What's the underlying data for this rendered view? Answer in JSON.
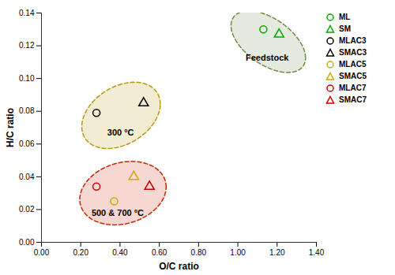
{
  "chart_data": {
    "type": "scatter",
    "xlabel": "O/C ratio",
    "ylabel": "H/C ratio",
    "xlim": [
      0.0,
      1.4
    ],
    "ylim": [
      0.0,
      0.14
    ],
    "xticks": [
      {
        "value": 0.0,
        "label": "0.00"
      },
      {
        "value": 0.2,
        "label": "0.20"
      },
      {
        "value": 0.4,
        "label": "0.40"
      },
      {
        "value": 0.6,
        "label": "0.60"
      },
      {
        "value": 0.8,
        "label": "0.80"
      },
      {
        "value": 1.0,
        "label": "1.00"
      },
      {
        "value": 1.2,
        "label": "1.20"
      },
      {
        "value": 1.4,
        "label": "1.40"
      }
    ],
    "yticks": [
      {
        "value": 0.0,
        "label": "0.00"
      },
      0.02,
      0.04,
      0.06,
      0.08,
      {
        "value": 0.1,
        "label": "0.10"
      },
      0.12,
      0.14
    ],
    "grid": false,
    "legend": "upper right",
    "series": [
      {
        "name": "ML",
        "color": "#00aa00",
        "marker": "circle",
        "x": [
          1.13
        ],
        "values": [
          0.13
        ]
      },
      {
        "name": "SM",
        "color": "#00aa00",
        "marker": "triangle",
        "x": [
          1.21
        ],
        "values": [
          0.127
        ]
      },
      {
        "name": "MLAC3",
        "color": "#000000",
        "marker": "circle",
        "x": [
          0.28
        ],
        "values": [
          0.079
        ]
      },
      {
        "name": "SMAC3",
        "color": "#000000",
        "marker": "triangle",
        "x": [
          0.52
        ],
        "values": [
          0.085
        ]
      },
      {
        "name": "MLAC5",
        "color": "#ccaa00",
        "marker": "circle",
        "x": [
          0.37
        ],
        "values": [
          0.025
        ]
      },
      {
        "name": "SMAC5",
        "color": "#ccaa00",
        "marker": "triangle",
        "x": [
          0.47
        ],
        "values": [
          0.04
        ]
      },
      {
        "name": "MLAC7",
        "color": "#cc0000",
        "marker": "circle",
        "x": [
          0.28
        ],
        "values": [
          0.034
        ]
      },
      {
        "name": "SMAC7",
        "color": "#cc0000",
        "marker": "triangle",
        "x": [
          0.55
        ],
        "values": [
          0.034
        ]
      }
    ],
    "ellipses": [
      {
        "label": "Feedstock",
        "cx": 1.155,
        "cy": 0.1225,
        "width": 0.38,
        "height": 0.032,
        "angle": -3,
        "color": "#6a8a40",
        "line_style": "dashed",
        "text_x": 1.04,
        "text_y": 0.111
      },
      {
        "label": "300 °C",
        "cx": 0.405,
        "cy": 0.0775,
        "width": 0.4,
        "height": 0.038,
        "angle": 2,
        "color": "#b8980a",
        "line_style": "dashed",
        "text_x": 0.335,
        "text_y": 0.065
      },
      {
        "label": "500 & 700 °C",
        "cx": 0.415,
        "cy": 0.03,
        "width": 0.44,
        "height": 0.038,
        "angle": 1,
        "color": "#cc2200",
        "line_style": "dashed",
        "text_x": 0.255,
        "text_y": 0.016
      }
    ]
  }
}
